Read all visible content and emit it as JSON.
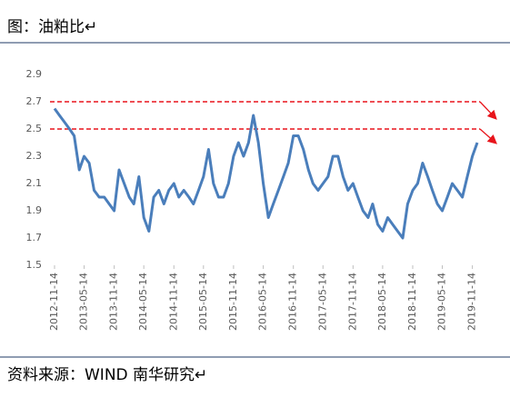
{
  "title": "图：油粕比↵",
  "source": "资料来源：WIND  南华研究↵",
  "chart_data": {
    "type": "line",
    "x": [
      "2012-11-14",
      "2012-12-14",
      "2013-01-14",
      "2013-02-14",
      "2013-03-14",
      "2013-04-14",
      "2013-05-14",
      "2013-06-14",
      "2013-07-14",
      "2013-08-14",
      "2013-09-14",
      "2013-10-14",
      "2013-11-14",
      "2013-12-14",
      "2014-01-14",
      "2014-02-14",
      "2014-03-14",
      "2014-04-14",
      "2014-05-14",
      "2014-06-14",
      "2014-07-14",
      "2014-08-14",
      "2014-09-14",
      "2014-10-14",
      "2014-11-14",
      "2014-12-14",
      "2015-01-14",
      "2015-02-14",
      "2015-03-14",
      "2015-04-14",
      "2015-05-14",
      "2015-06-14",
      "2015-07-14",
      "2015-08-14",
      "2015-09-14",
      "2015-10-14",
      "2015-11-14",
      "2015-12-14",
      "2016-01-14",
      "2016-02-14",
      "2016-03-14",
      "2016-04-14",
      "2016-05-14",
      "2016-06-14",
      "2016-07-14",
      "2016-08-14",
      "2016-09-14",
      "2016-10-14",
      "2016-11-14",
      "2016-12-14",
      "2017-01-14",
      "2017-02-14",
      "2017-03-14",
      "2017-04-14",
      "2017-05-14",
      "2017-06-14",
      "2017-07-14",
      "2017-08-14",
      "2017-09-14",
      "2017-10-14",
      "2017-11-14",
      "2017-12-14",
      "2018-01-14",
      "2018-02-14",
      "2018-03-14",
      "2018-04-14",
      "2018-05-14",
      "2018-06-14",
      "2018-07-14",
      "2018-08-14",
      "2018-09-14",
      "2018-10-14",
      "2018-11-14",
      "2018-12-14",
      "2019-01-14",
      "2019-02-14",
      "2019-03-14",
      "2019-04-14",
      "2019-05-14",
      "2019-06-14",
      "2019-07-14",
      "2019-08-14",
      "2019-09-14",
      "2019-10-14",
      "2019-11-14",
      "2019-12-14"
    ],
    "series": [
      {
        "color": "#4a7ebb",
        "values": [
          2.65,
          2.6,
          2.55,
          2.5,
          2.45,
          2.2,
          2.3,
          2.25,
          2.05,
          2.0,
          2.0,
          1.95,
          1.9,
          2.2,
          2.1,
          2.0,
          1.95,
          2.15,
          1.85,
          1.75,
          2.0,
          2.05,
          1.95,
          2.05,
          2.1,
          2.0,
          2.05,
          2.0,
          1.95,
          2.05,
          2.15,
          2.35,
          2.1,
          2.0,
          2.0,
          2.1,
          2.3,
          2.4,
          2.3,
          2.4,
          2.6,
          2.4,
          2.1,
          1.85,
          1.95,
          2.05,
          2.15,
          2.25,
          2.45,
          2.45,
          2.35,
          2.2,
          2.1,
          2.05,
          2.1,
          2.15,
          2.3,
          2.3,
          2.15,
          2.05,
          2.1,
          2.0,
          1.9,
          1.85,
          1.95,
          1.8,
          1.75,
          1.85,
          1.8,
          1.75,
          1.7,
          1.95,
          2.05,
          2.1,
          2.25,
          2.15,
          2.05,
          1.95,
          1.9,
          2.0,
          2.1,
          2.05,
          2.0,
          2.15,
          2.3,
          2.4
        ]
      }
    ],
    "xlim": [
      "2012-11-14",
      "2019-12-14"
    ],
    "xticks": [
      "2012-11-14",
      "2013-05-14",
      "2013-11-14",
      "2014-05-14",
      "2014-11-14",
      "2015-05-14",
      "2015-11-14",
      "2016-05-14",
      "2016-11-14",
      "2017-05-14",
      "2017-11-14",
      "2018-05-14",
      "2018-11-14",
      "2019-05-14",
      "2019-11-14"
    ],
    "ylim": [
      1.5,
      2.9
    ],
    "yticks": [
      1.5,
      1.7,
      1.9,
      2.1,
      2.3,
      2.5,
      2.7,
      2.9
    ],
    "hlines": [
      2.7,
      2.5
    ],
    "hline_color": "#e8141b"
  }
}
